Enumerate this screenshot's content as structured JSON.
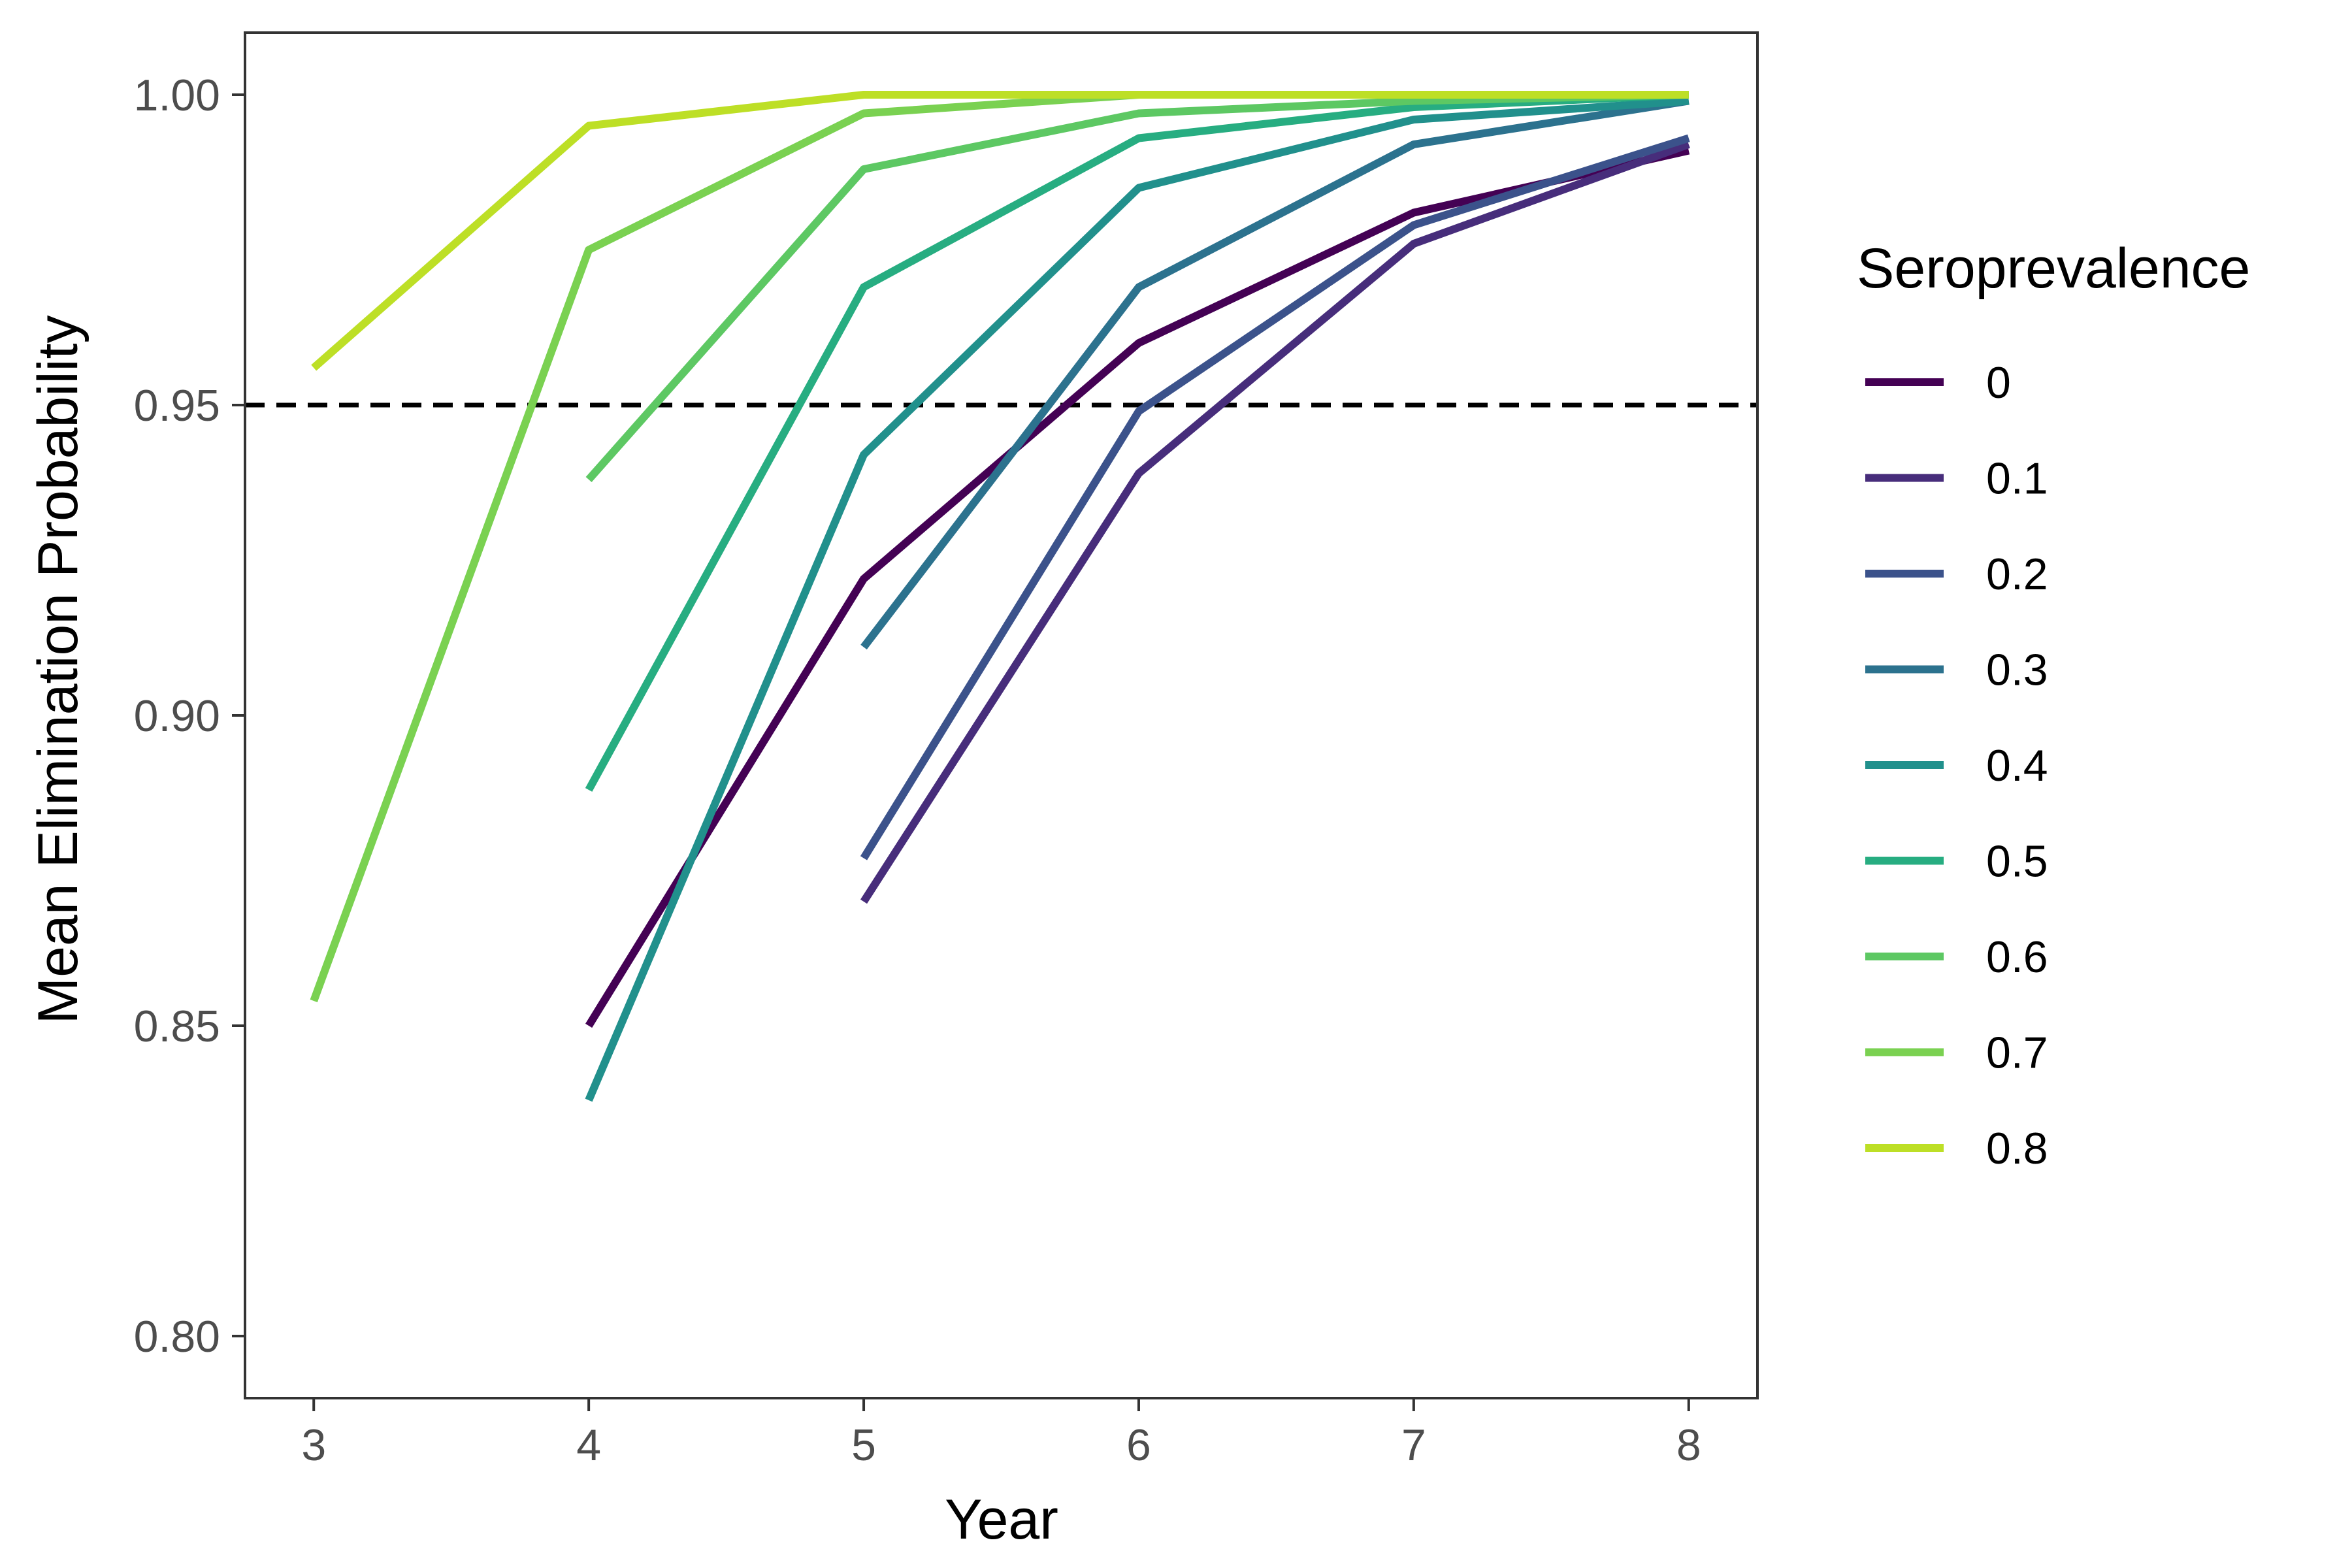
{
  "chart_data": {
    "type": "line",
    "xlabel": "Year",
    "ylabel": "Mean Elimination Probability",
    "xlim": [
      2.75,
      8.25
    ],
    "ylim": [
      0.79,
      1.01
    ],
    "x_ticks": [
      3,
      4,
      5,
      6,
      7,
      8
    ],
    "x_tick_labels": [
      "3",
      "4",
      "5",
      "6",
      "7",
      "8"
    ],
    "y_ticks": [
      0.8,
      0.85,
      0.9,
      0.95,
      1.0
    ],
    "y_tick_labels": [
      "0.80",
      "0.85",
      "0.90",
      "0.95",
      "1.00"
    ],
    "grid": false,
    "reference_line": {
      "y": 0.95,
      "style": "dashed",
      "color": "#000000"
    },
    "legend": {
      "title": "Seroprevalence",
      "placement": "right"
    },
    "series": [
      {
        "name": "0",
        "color": "#440154",
        "x": [
          4,
          5,
          6,
          7,
          8
        ],
        "y": [
          0.85,
          0.922,
          0.96,
          0.981,
          0.991
        ]
      },
      {
        "name": "0.1",
        "color": "#472D7B",
        "x": [
          5,
          6,
          7,
          8
        ],
        "y": [
          0.87,
          0.939,
          0.976,
          0.992
        ]
      },
      {
        "name": "0.2",
        "color": "#3B528B",
        "x": [
          5,
          6,
          7,
          8
        ],
        "y": [
          0.877,
          0.949,
          0.979,
          0.993
        ]
      },
      {
        "name": "0.3",
        "color": "#2C728E",
        "x": [
          5,
          6,
          7,
          8
        ],
        "y": [
          0.911,
          0.969,
          0.992,
          0.999
        ]
      },
      {
        "name": "0.4",
        "color": "#21908C",
        "x": [
          4,
          5,
          6,
          7,
          8
        ],
        "y": [
          0.838,
          0.942,
          0.985,
          0.996,
          0.999
        ]
      },
      {
        "name": "0.5",
        "color": "#27AD81",
        "x": [
          4,
          5,
          6,
          7,
          8
        ],
        "y": [
          0.888,
          0.969,
          0.993,
          0.998,
          1.0
        ]
      },
      {
        "name": "0.6",
        "color": "#5DC863",
        "x": [
          4,
          5,
          6,
          7,
          8
        ],
        "y": [
          0.938,
          0.988,
          0.997,
          0.999,
          1.0
        ]
      },
      {
        "name": "0.7",
        "color": "#7AD151",
        "x": [
          3,
          4,
          5,
          6,
          7,
          8
        ],
        "y": [
          0.854,
          0.975,
          0.997,
          1.0,
          1.0,
          1.0
        ]
      },
      {
        "name": "0.8",
        "color": "#BDDF26",
        "x": [
          3,
          4,
          5,
          6,
          7,
          8
        ],
        "y": [
          0.956,
          0.995,
          1.0,
          1.0,
          1.0,
          1.0
        ]
      }
    ]
  }
}
